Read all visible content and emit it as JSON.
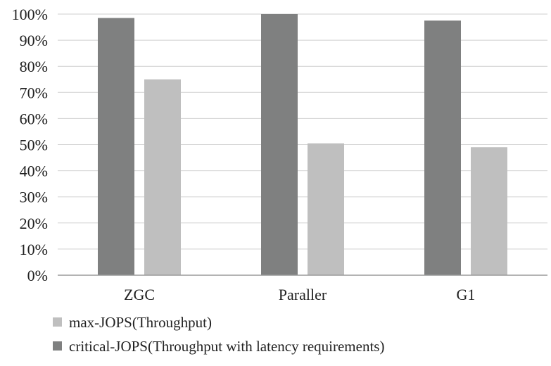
{
  "chart_data": {
    "type": "bar",
    "title": "",
    "xlabel": "",
    "ylabel": "",
    "categories": [
      "ZGC",
      "Paraller",
      "G1"
    ],
    "series": [
      {
        "name": "critical-JOPS(Throughput with latency requirements)",
        "color": "#7f8080",
        "values": [
          98.5,
          100,
          97.5
        ]
      },
      {
        "name": "max-JOPS(Throughput)",
        "color": "#bfbfbf",
        "values": [
          75,
          50.5,
          49
        ]
      }
    ],
    "ylim": [
      0,
      100
    ],
    "yticks": [
      "0%",
      "10%",
      "20%",
      "30%",
      "40%",
      "50%",
      "60%",
      "70%",
      "80%",
      "90%",
      "100%"
    ],
    "grid": true,
    "legend_position": "bottom-left",
    "legend_order": [
      1,
      0
    ]
  }
}
